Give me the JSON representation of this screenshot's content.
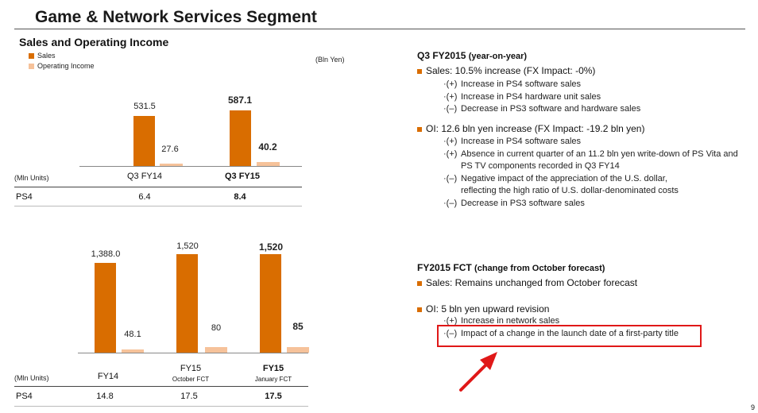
{
  "header": {
    "title": "Game & Network Services Segment",
    "left_title": "Sales and Operating Income",
    "legend_sales": "Sales",
    "legend_oi": "Operating Income",
    "unit": "(Bln Yen)"
  },
  "chart_data": [
    {
      "type": "bar",
      "categories": [
        "Q3 FY14",
        "Q3 FY15"
      ],
      "series": [
        {
          "name": "Sales",
          "values": [
            531.5,
            587.1
          ]
        },
        {
          "name": "Operating Income",
          "values": [
            27.6,
            40.2
          ]
        }
      ],
      "value_labels": {
        "sales": [
          "531.5",
          "587.1"
        ],
        "oi": [
          "27.6",
          "40.2"
        ]
      },
      "ylabel": "",
      "table": {
        "units": "(Mln Units)",
        "row_label": "PS4",
        "values": [
          "6.4",
          "8.4"
        ]
      }
    },
    {
      "type": "bar",
      "categories": [
        "FY14",
        "FY15",
        "FY15"
      ],
      "category_subs": [
        "",
        "October FCT",
        "January FCT"
      ],
      "series": [
        {
          "name": "Sales",
          "values": [
            1388.0,
            1520,
            1520
          ]
        },
        {
          "name": "Operating Income",
          "values": [
            48.1,
            80,
            85
          ]
        }
      ],
      "value_labels": {
        "sales": [
          "1,388.0",
          "1,520",
          "1,520"
        ],
        "oi": [
          "48.1",
          "80",
          "85"
        ]
      },
      "table": {
        "units": "(Mln Units)",
        "row_label": "PS4",
        "values": [
          "14.8",
          "17.5",
          "17.5"
        ]
      }
    }
  ],
  "right": {
    "q3": {
      "heading": "Q3 FY2015",
      "heading_suffix": "(year-on-year)",
      "sales_line": "Sales: 10.5% increase (FX Impact:  -0%)",
      "sales_items": [
        {
          "mark": "·(+)",
          "text": "Increase in PS4 software sales"
        },
        {
          "mark": "·(+)",
          "text": "Increase in PS4 hardware unit sales"
        },
        {
          "mark": "·(–)",
          "text": "Decrease in PS3 software and hardware sales"
        }
      ],
      "oi_line": "OI:  12.6 bln yen increase (FX Impact:  -19.2 bln yen)",
      "oi_items": [
        {
          "mark": "·(+)",
          "text": "Increase in PS4 software sales"
        },
        {
          "mark": "·(+)",
          "text": "Absence in current quarter of an 11.2 bln yen write-down of PS Vita and"
        },
        {
          "mark": "",
          "text": "PS TV components recorded in Q3 FY14"
        },
        {
          "mark": "·(–)",
          "text": "Negative impact of the appreciation of the U.S. dollar,"
        },
        {
          "mark": "",
          "text": "reflecting the high ratio of U.S. dollar-denominated costs"
        },
        {
          "mark": "·(–)",
          "text": "Decrease in PS3 software sales"
        }
      ]
    },
    "fct": {
      "heading": "FY2015 FCT",
      "heading_suffix": "(change from October forecast)",
      "sales_line": "Sales: Remains unchanged from October forecast",
      "oi_line": "OI: 5 bln yen upward revision",
      "oi_items": [
        {
          "mark": "·(+)",
          "text": "Increase in network sales"
        },
        {
          "mark": "·(–)",
          "text": "Impact of a change in the launch date of a first-party title"
        }
      ]
    }
  },
  "footer": {
    "page": "9"
  },
  "colors": {
    "sales": "#d96d00",
    "oi": "#f6c29a",
    "highlight": "#e01818",
    "arrow": "#e01818"
  }
}
